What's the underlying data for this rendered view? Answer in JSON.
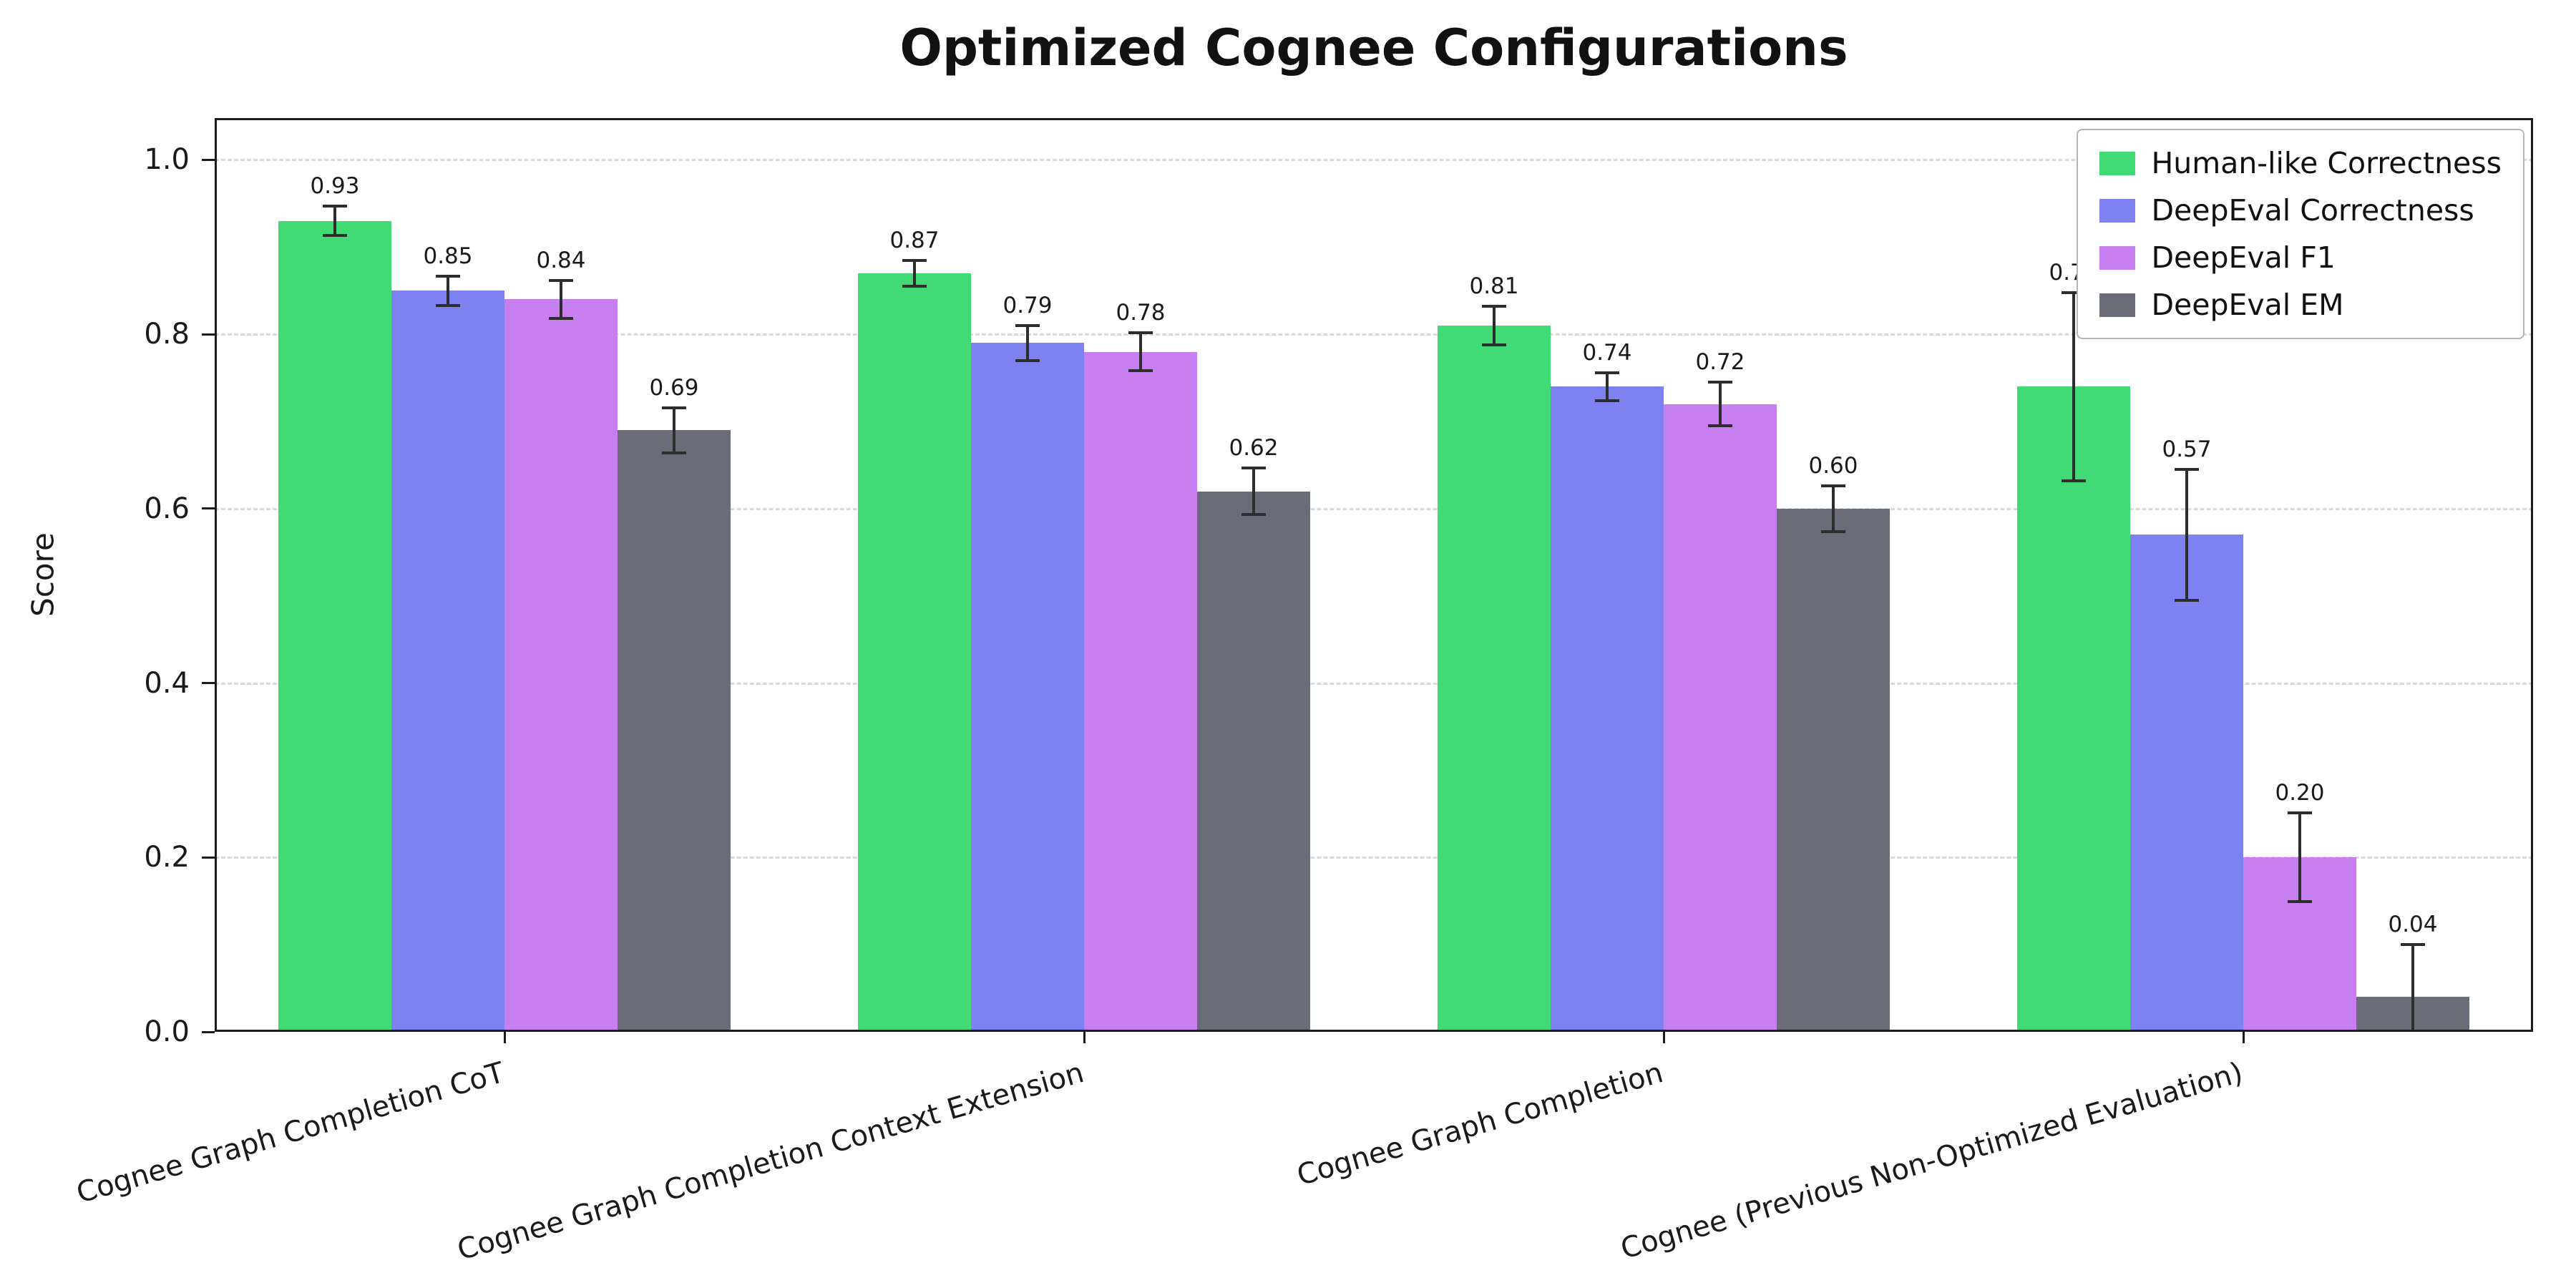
{
  "chart_data": {
    "type": "bar",
    "title": "Optimized Cognee Configurations",
    "ylabel": "Score",
    "xlabel": "",
    "ylim": [
      0,
      1.048
    ],
    "yticks": [
      0.0,
      0.2,
      0.4,
      0.6,
      0.8,
      1.0
    ],
    "grid": "horizontal dashed",
    "legend_position": "upper right",
    "error_bars": true,
    "categories": [
      "Cognee Graph Completion CoT",
      "Cognee Graph Completion Context Extension",
      "Cognee Graph Completion",
      "Cognee (Previous Non-Optimized Evaluation)"
    ],
    "series": [
      {
        "name": "Human-like Correctness",
        "color": "#42d977",
        "values": [
          0.93,
          0.87,
          0.81,
          0.74
        ],
        "errors": [
          0.017,
          0.015,
          0.022,
          0.108
        ]
      },
      {
        "name": "DeepEval Correctness",
        "color": "#7d82f0",
        "values": [
          0.85,
          0.79,
          0.74,
          0.57
        ],
        "errors": [
          0.017,
          0.02,
          0.016,
          0.075
        ]
      },
      {
        "name": "DeepEval F1",
        "color": "#c77ff0",
        "values": [
          0.84,
          0.78,
          0.72,
          0.2
        ],
        "errors": [
          0.022,
          0.022,
          0.025,
          0.051
        ]
      },
      {
        "name": "DeepEval EM",
        "color": "#6a6d78",
        "values": [
          0.69,
          0.62,
          0.6,
          0.04
        ],
        "errors": [
          0.026,
          0.027,
          0.026,
          0.06
        ]
      }
    ],
    "value_labels": [
      [
        "0.93",
        "0.87",
        "0.81",
        "0.74"
      ],
      [
        "0.85",
        "0.79",
        "0.74",
        "0.57"
      ],
      [
        "0.84",
        "0.78",
        "0.72",
        "0.20"
      ],
      [
        "0.69",
        "0.62",
        "0.60",
        "0.04"
      ]
    ]
  }
}
